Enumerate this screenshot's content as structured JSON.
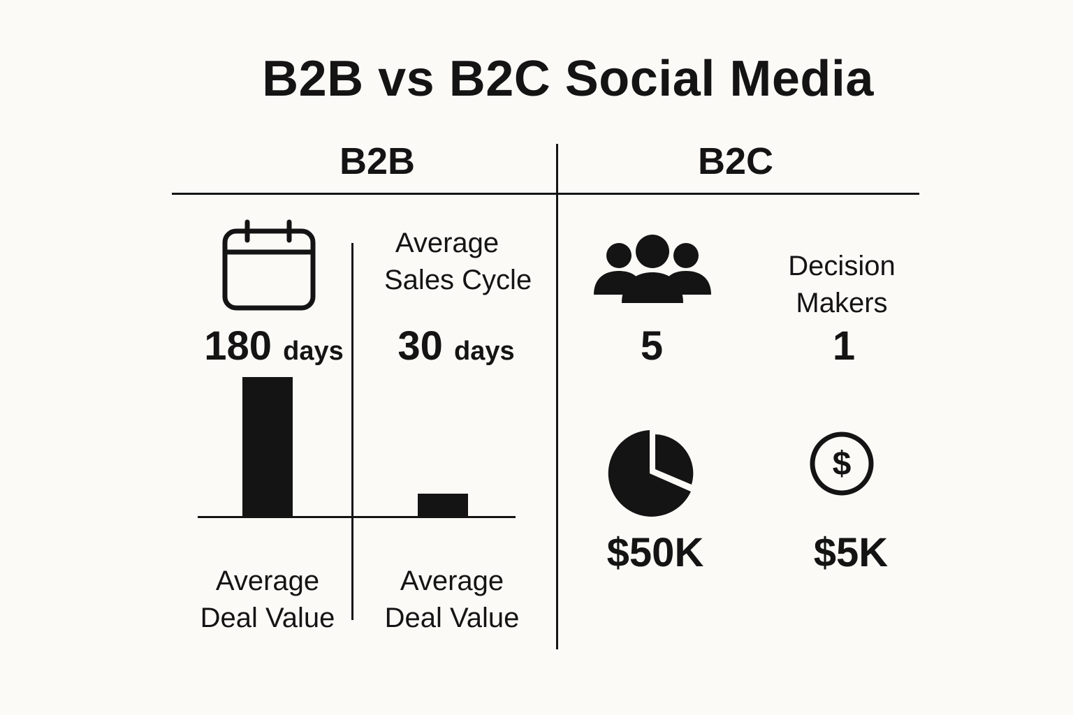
{
  "title": "B2B vs B2C Social Media",
  "columns": {
    "b2b": "B2B",
    "b2c": "B2C"
  },
  "b2b_panel": {
    "label_sales_cycle_line1": "Average",
    "label_sales_cycle_line2": "Sales Cycle",
    "stat_left_value": "180",
    "stat_left_unit": "days",
    "stat_right_value": "30",
    "stat_right_unit": "days",
    "label_deal_left_line1": "Average",
    "label_deal_left_line2": "Deal Value",
    "label_deal_right_line1": "Average",
    "label_deal_right_line2": "Deal Value",
    "icon": "calendar-icon"
  },
  "b2c_panel": {
    "label_decision_line1": "Decision",
    "label_decision_line2": "Makers",
    "decision_left": "5",
    "decision_right": "1",
    "money_left": "$50K",
    "money_right": "$5K",
    "icons": [
      "group-icon",
      "pie-chart-icon",
      "dollar-coin-icon"
    ]
  },
  "chart_data": {
    "type": "bar",
    "categories": [
      "B2B",
      "B2C"
    ],
    "values": [
      180,
      30
    ],
    "title": "",
    "xlabel": "",
    "ylabel": ""
  },
  "colors": {
    "ink": "#141414",
    "background": "#fbfaf7"
  }
}
